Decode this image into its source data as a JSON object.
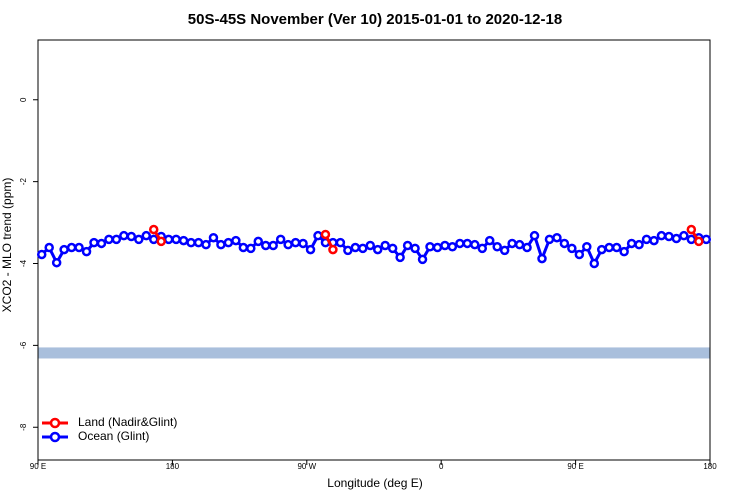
{
  "chart_data": {
    "type": "line",
    "title": "50S-45S November (Ver 10)   2015-01-01 to 2020-12-18",
    "xlabel": "Longitude (deg E)",
    "ylabel": "XCO2 - MLO trend (ppm)",
    "xlim": [
      90,
      540
    ],
    "ylim": [
      -8.8,
      1.46
    ],
    "xticks": [
      {
        "value": 90,
        "label": "90 E"
      },
      180,
      {
        "value": 270,
        "label": "90 W"
      },
      {
        "value": 360,
        "label": "0"
      },
      {
        "value": 450,
        "label": "90 E"
      },
      {
        "value": 540,
        "label": "180"
      }
    ],
    "yticks": [
      -8,
      -6,
      -4,
      -2,
      0
    ],
    "legend": "bottom-left",
    "band": {
      "ymin": -6.32,
      "ymax": -6.05,
      "color": "#a9bfdc"
    },
    "series": [
      {
        "name": "Land (Nadir&Glint)",
        "color": "#ff0000",
        "x": [
          167.5,
          172.5,
          177.5,
          282.5,
          287.5,
          292.5,
          527.5,
          532.5
        ],
        "values": [
          -3.17,
          -3.46,
          null,
          -3.29,
          -3.66,
          null,
          -3.17,
          -3.46
        ]
      },
      {
        "name": "Ocean (Glint)",
        "color": "#0000ff",
        "x": [
          92.5,
          97.5,
          102.5,
          107.5,
          112.5,
          117.5,
          122.5,
          127.5,
          132.5,
          137.5,
          142.5,
          147.5,
          152.5,
          157.5,
          162.5,
          167.5,
          172.5,
          177.5,
          182.5,
          187.5,
          192.5,
          197.5,
          202.5,
          207.5,
          212.5,
          217.5,
          222.5,
          227.5,
          232.5,
          237.5,
          242.5,
          247.5,
          252.5,
          257.5,
          262.5,
          267.5,
          272.5,
          277.5,
          282.5,
          287.5,
          292.5,
          297.5,
          302.5,
          307.5,
          312.5,
          317.5,
          322.5,
          327.5,
          332.5,
          337.5,
          342.5,
          347.5,
          352.5,
          357.5,
          362.5,
          367.5,
          372.5,
          377.5,
          382.5,
          387.5,
          392.5,
          397.5,
          402.5,
          407.5,
          412.5,
          417.5,
          422.5,
          427.5,
          432.5,
          437.5,
          442.5,
          447.5,
          452.5,
          457.5,
          462.5,
          467.5,
          472.5,
          477.5,
          482.5,
          487.5,
          492.5,
          497.5,
          502.5,
          507.5,
          512.5,
          517.5,
          522.5,
          527.5,
          532.5,
          537.5
        ],
        "values": [
          -3.78,
          -3.61,
          -3.98,
          -3.66,
          -3.61,
          -3.61,
          -3.71,
          -3.49,
          -3.51,
          -3.41,
          -3.41,
          -3.32,
          -3.34,
          -3.41,
          -3.32,
          -3.41,
          -3.34,
          -3.41,
          -3.41,
          -3.44,
          -3.49,
          -3.49,
          -3.54,
          -3.37,
          -3.54,
          -3.49,
          -3.44,
          -3.61,
          -3.63,
          -3.46,
          -3.56,
          -3.56,
          -3.41,
          -3.54,
          -3.49,
          -3.51,
          -3.66,
          -3.32,
          -3.49,
          -3.49,
          -3.49,
          -3.68,
          -3.61,
          -3.63,
          -3.56,
          -3.66,
          -3.56,
          -3.63,
          -3.85,
          -3.56,
          -3.63,
          -3.9,
          -3.59,
          -3.61,
          -3.56,
          -3.59,
          -3.51,
          -3.51,
          -3.54,
          -3.63,
          -3.44,
          -3.59,
          -3.68,
          -3.51,
          -3.54,
          -3.61,
          -3.32,
          -3.88,
          -3.41,
          -3.37,
          -3.51,
          -3.63,
          -3.78,
          -3.59,
          -4.0,
          -3.66,
          -3.61,
          -3.61,
          -3.71,
          -3.51,
          -3.54,
          -3.41,
          -3.44,
          -3.32,
          -3.34,
          -3.39,
          -3.32,
          -3.41,
          -3.37,
          -3.41
        ]
      }
    ]
  }
}
